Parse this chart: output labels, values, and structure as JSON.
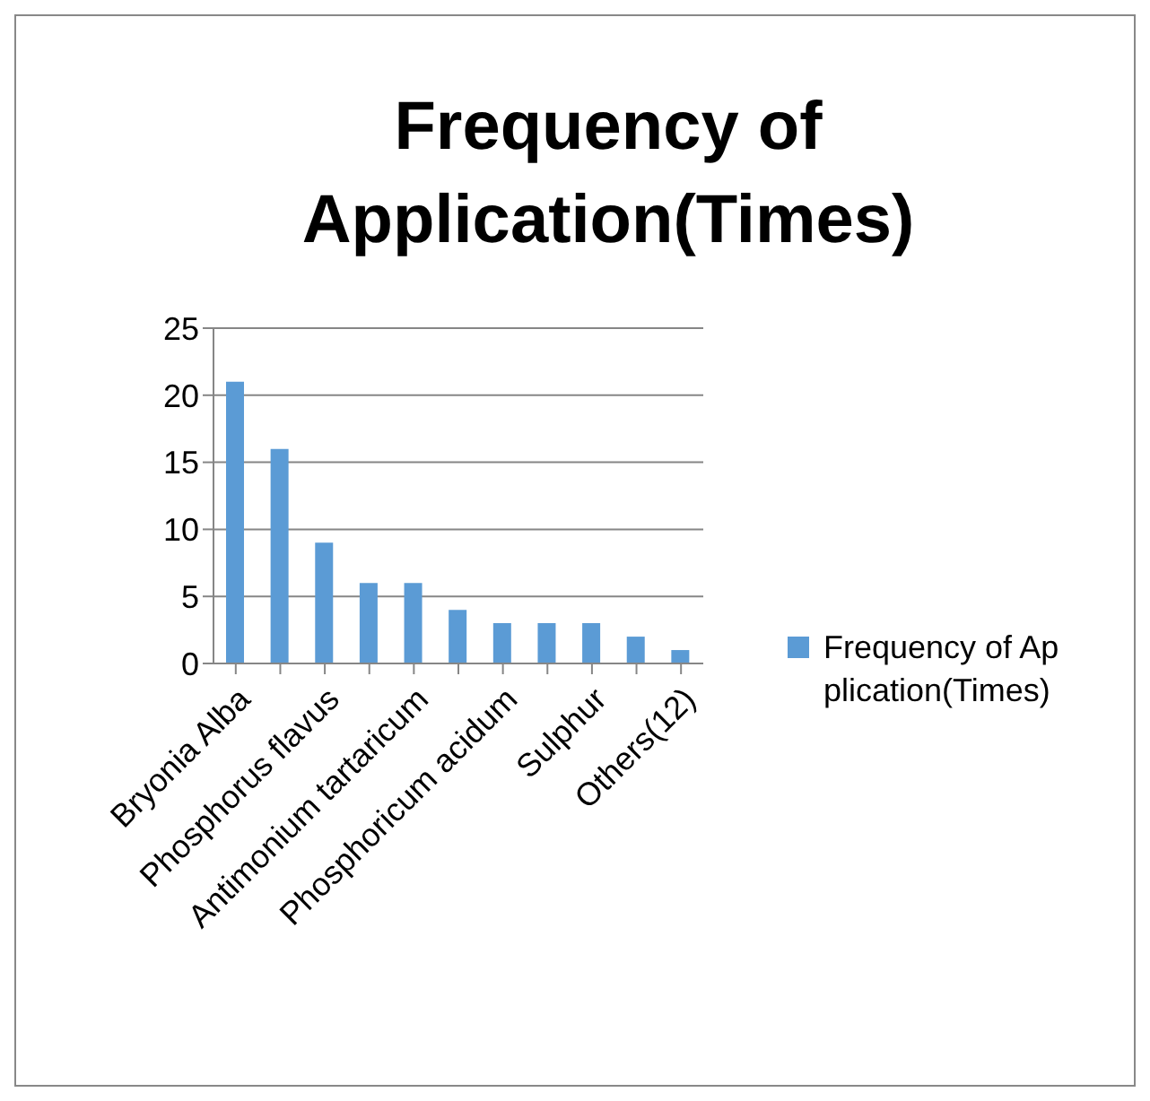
{
  "chart_data": {
    "type": "bar",
    "title": "Frequency of Application(Times)",
    "categories": [
      "Bryonia Alba",
      null,
      "Phosphorus flavus",
      null,
      "Antimonium tartaricum",
      null,
      "Phosphoricum acidum",
      null,
      "Sulphur",
      null,
      "Others(12)"
    ],
    "series": [
      {
        "name": "Frequency of Application(Times)",
        "color": "#5b9bd5",
        "values": [
          21,
          16,
          9,
          6,
          6,
          4,
          3,
          3,
          3,
          2,
          1
        ]
      }
    ],
    "ylim": [
      0,
      25
    ],
    "yticks": [
      0,
      5,
      10,
      15,
      20,
      25
    ],
    "grid": "y",
    "legend": "right"
  }
}
